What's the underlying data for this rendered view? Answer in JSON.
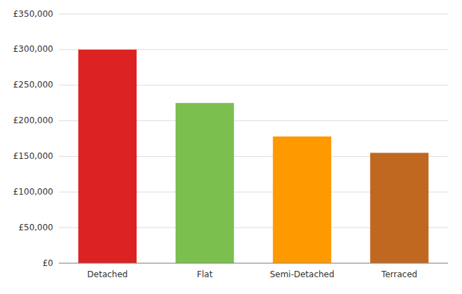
{
  "chart_data": {
    "type": "bar",
    "categories": [
      "Detached",
      "Flat",
      "Semi-Detached",
      "Terraced"
    ],
    "values": [
      300000,
      225000,
      178000,
      155000
    ],
    "colors": [
      "#dd2222",
      "#7bbf4e",
      "#ff9900",
      "#c06820"
    ],
    "ylim": [
      0,
      350000
    ],
    "yticks": [
      {
        "value": 0,
        "label": "£0"
      },
      {
        "value": 50000,
        "label": "£50,000"
      },
      {
        "value": 100000,
        "label": "£100,000"
      },
      {
        "value": 150000,
        "label": "£150,000"
      },
      {
        "value": 200000,
        "label": "£200,000"
      },
      {
        "value": 250000,
        "label": "£250,000"
      },
      {
        "value": 300000,
        "label": "£300,000"
      },
      {
        "value": 350000,
        "label": "£350,000"
      }
    ],
    "grid": true
  }
}
